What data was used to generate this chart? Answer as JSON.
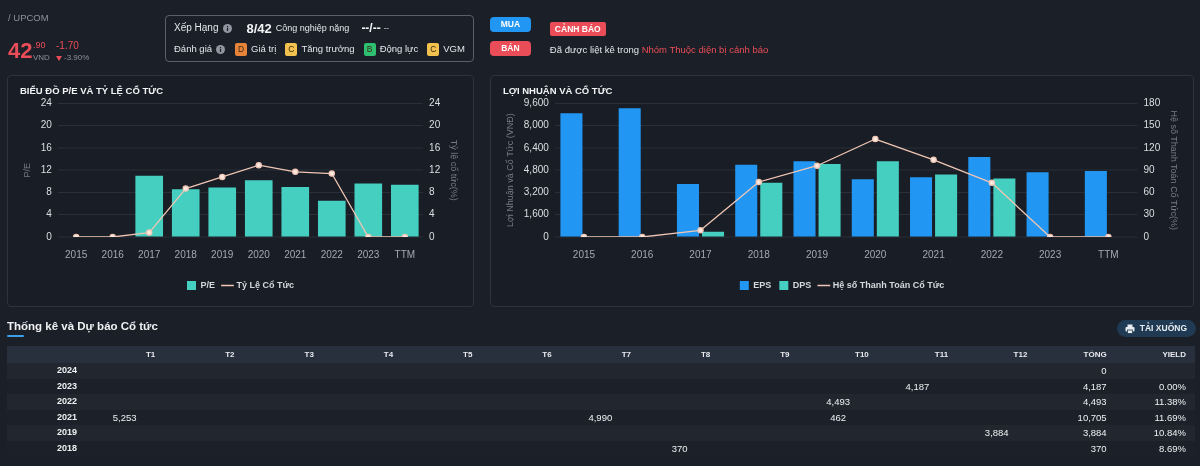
{
  "chart_data": [
    {
      "type": "other",
      "annotations": [
        "/ UPCOM",
        "42",
        ".90",
        "VND",
        "-1.70",
        "-3.90%",
        "Xếp Hạng",
        "8/42",
        "Công nghiệp nặng",
        "--/--",
        "--",
        "Đánh giá",
        "D",
        "Giá trị",
        "C",
        "Tăng trưởng",
        "B",
        "Động lực",
        "C",
        "VGM",
        "MUA",
        "BÁN",
        "CẢNH BÁO",
        "Đã được liệt kê trong ",
        "Nhóm Thuộc diện bị cảnh báo"
      ]
    },
    {
      "type": "bar",
      "title": "BIỂU ĐỒ P/E VÀ TỶ LỆ CỔ TỨC",
      "categories": [
        "2015",
        "2016",
        "2017",
        "2018",
        "2019",
        "2020",
        "2021",
        "2022",
        "2023",
        "TTM"
      ],
      "series": [
        {
          "name": "P/E",
          "color": "#45cfc1",
          "values": [
            null,
            null,
            11.0,
            8.6,
            8.9,
            10.2,
            9.0,
            6.5,
            9.6,
            9.4
          ]
        },
        {
          "name": "Tỷ Lệ Cổ Tức",
          "type": "line",
          "axis": "y2",
          "color": "#f0c6b4",
          "values": [
            0,
            0,
            0.8,
            8.7,
            10.8,
            12.9,
            11.7,
            11.4,
            0,
            0
          ]
        }
      ],
      "ylabel": "P/E",
      "y2label": "Tỷ lệ cổ tức(%)",
      "ylim": [
        0,
        24
      ],
      "yticks": [
        0,
        4,
        8,
        12,
        16,
        20,
        24
      ],
      "y2lim": [
        0,
        24
      ],
      "y2ticks": [
        0,
        4,
        8,
        12,
        16,
        20,
        24
      ],
      "grid": "y",
      "legend": "bottom",
      "marker": "circle"
    },
    {
      "type": "bar",
      "title": "LỢI NHUẬN VÀ CỔ TỨC",
      "categories": [
        "2015",
        "2016",
        "2017",
        "2018",
        "2019",
        "2020",
        "2021",
        "2022",
        "2023",
        "TTM"
      ],
      "series": [
        {
          "name": "EPS",
          "color": "#2196f3",
          "values": [
            8900,
            9250,
            3800,
            5200,
            5450,
            4150,
            4300,
            5750,
            4650,
            4750
          ]
        },
        {
          "name": "DPS",
          "color": "#45cfc1",
          "values": [
            null,
            null,
            370,
            3900,
            5250,
            5450,
            4500,
            4200,
            null,
            null
          ]
        },
        {
          "name": "Hệ số Thanh Toán Cổ Tức",
          "type": "line",
          "axis": "y2",
          "color": "#f0c6b4",
          "values": [
            0,
            0,
            9,
            74,
            96,
            132,
            104,
            73,
            0,
            0
          ]
        }
      ],
      "ylabel": "Lợi Nhuận và Cổ Tức (VNĐ)",
      "y2label": "Hệ số Thanh Toán Cổ Tức(%)",
      "ylim": [
        0,
        9600
      ],
      "yticks": [
        0,
        {
          "value": 1600,
          "label": "1,600"
        },
        {
          "value": 3200,
          "label": "3,200"
        },
        {
          "value": 4800,
          "label": "4,800"
        },
        {
          "value": 6400,
          "label": "6,400"
        },
        {
          "value": 8000,
          "label": "8,000"
        },
        {
          "value": 9600,
          "label": "9,600"
        }
      ],
      "y2lim": [
        0,
        180
      ],
      "y2ticks": [
        0,
        30,
        60,
        90,
        120,
        150,
        180
      ],
      "grid": "y",
      "legend": "bottom",
      "marker": "circle"
    },
    {
      "type": "heatmap",
      "title": "Thống kê và Dự báo Cổ tức",
      "annotations": [
        "TẢI XUỐNG"
      ],
      "categories": [
        "T1",
        "T2",
        "T3",
        "T4",
        "T5",
        "T6",
        "T7",
        "T8",
        "T9",
        "T10",
        "T11",
        "T12",
        "TỔNG",
        "YIELD"
      ],
      "y_categories": [
        "2024",
        "2023",
        "2022",
        "2021",
        "2019",
        "2018"
      ],
      "cells": [
        [
          null,
          null,
          null,
          null,
          null,
          null,
          null,
          null,
          null,
          null,
          null,
          null,
          0,
          null
        ],
        [
          null,
          null,
          null,
          null,
          null,
          null,
          null,
          null,
          null,
          null,
          4187,
          null,
          4187,
          0.0
        ],
        [
          null,
          null,
          null,
          null,
          null,
          null,
          null,
          null,
          null,
          4493,
          null,
          null,
          4493,
          11.38
        ],
        [
          5253,
          null,
          null,
          null,
          null,
          null,
          4990,
          null,
          null,
          462,
          null,
          null,
          10705,
          11.69
        ],
        [
          null,
          null,
          null,
          null,
          null,
          null,
          null,
          null,
          null,
          null,
          null,
          3884,
          3884,
          10.84
        ],
        [
          null,
          null,
          null,
          null,
          null,
          null,
          null,
          370,
          null,
          null,
          null,
          null,
          370,
          8.69
        ]
      ],
      "cell_labels": [
        [
          null,
          null,
          null,
          null,
          null,
          null,
          null,
          null,
          null,
          null,
          null,
          null,
          "0",
          null
        ],
        [
          null,
          null,
          null,
          null,
          null,
          null,
          null,
          null,
          null,
          null,
          "4,187",
          null,
          "4,187",
          "0.00%"
        ],
        [
          null,
          null,
          null,
          null,
          null,
          null,
          null,
          null,
          null,
          "4,493",
          null,
          null,
          "4,493",
          "11.38%"
        ],
        [
          "5,253",
          null,
          null,
          null,
          null,
          null,
          "4,990",
          null,
          null,
          "462",
          null,
          null,
          "10,705",
          "11.69%"
        ],
        [
          null,
          null,
          null,
          null,
          null,
          null,
          null,
          null,
          null,
          null,
          null,
          "3,884",
          "3,884",
          "10.84%"
        ],
        [
          null,
          null,
          null,
          null,
          null,
          null,
          null,
          "370",
          null,
          null,
          null,
          null,
          "370",
          "8.69%"
        ]
      ]
    }
  ]
}
